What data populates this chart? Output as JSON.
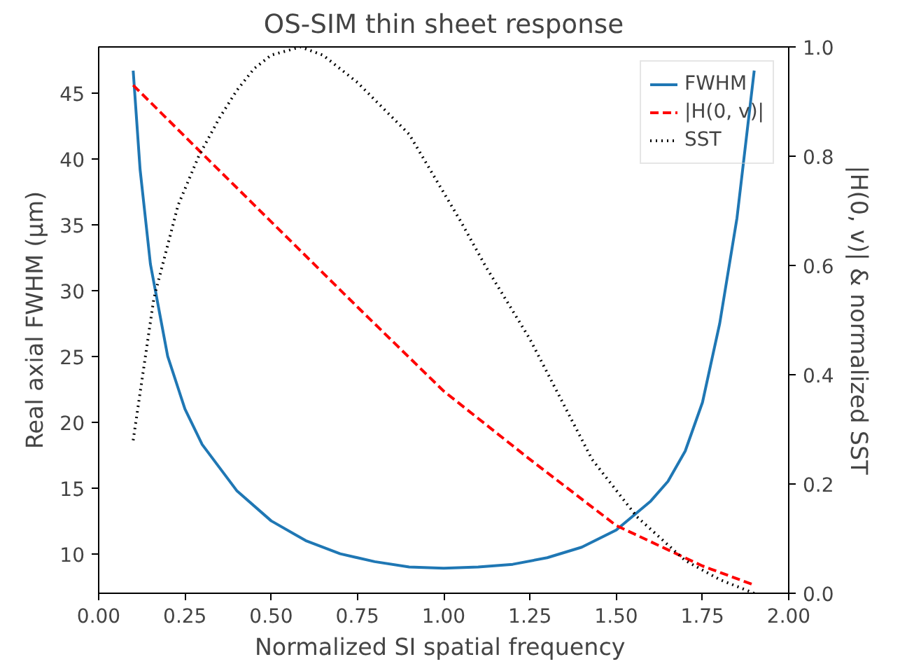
{
  "chart_data": {
    "type": "line",
    "title": "OS-SIM thin sheet response",
    "xlabel": "Normalized SI spatial  frequency",
    "ylabel": "Real axial FWHM (μm)",
    "y2label": "|H(0, v)| & normalized SST",
    "xlim": [
      0.0,
      2.0
    ],
    "ylim": [
      7.0,
      48.5
    ],
    "y2lim": [
      0.0,
      1.0
    ],
    "xticks": [
      {
        "value": 0,
        "label": "0.00"
      },
      {
        "value": 0.25,
        "label": "0.25"
      },
      {
        "value": 0.5,
        "label": "0.50"
      },
      {
        "value": 0.75,
        "label": "0.75"
      },
      {
        "value": 1,
        "label": "1.00"
      },
      {
        "value": 1.25,
        "label": "1.25"
      },
      {
        "value": 1.5,
        "label": "1.50"
      },
      {
        "value": 1.75,
        "label": "1.75"
      },
      {
        "value": 2,
        "label": "2.00"
      }
    ],
    "yticks": [
      10,
      15,
      20,
      25,
      30,
      35,
      40,
      45
    ],
    "y2ticks": [
      {
        "value": 0,
        "label": "0.0"
      },
      {
        "value": 0.2,
        "label": "0.2"
      },
      {
        "value": 0.4,
        "label": "0.4"
      },
      {
        "value": 0.6,
        "label": "0.6"
      },
      {
        "value": 0.8,
        "label": "0.8"
      },
      {
        "value": 1,
        "label": "1.0"
      }
    ],
    "legend": "top right",
    "grid": false,
    "series": [
      {
        "name": "FWHM",
        "color": "#1f77b4",
        "line_style": "solid",
        "x": [
          0.1,
          0.12,
          0.15,
          0.2,
          0.25,
          0.3,
          0.4,
          0.5,
          0.6,
          0.7,
          0.8,
          0.9,
          1.0,
          1.1,
          1.2,
          1.3,
          1.4,
          1.5,
          1.6,
          1.65,
          1.7,
          1.75,
          1.8,
          1.85,
          1.9
        ],
        "values": [
          46.7,
          39.2,
          32,
          25,
          21,
          18.3,
          14.8,
          12.5,
          11,
          10,
          9.4,
          9.0,
          8.9,
          9.0,
          9.2,
          9.7,
          10.5,
          11.8,
          14,
          15.5,
          17.8,
          21.5,
          27.5,
          35.5,
          46.7
        ]
      },
      {
        "name": "|H(0, v)|",
        "color": "#ff0000",
        "line_style": "dashed",
        "axis": "y2",
        "x": [
          0.1,
          0.25,
          0.5,
          0.75,
          1.0,
          1.12,
          1.25,
          1.5,
          1.75,
          1.9
        ],
        "values": [
          0.93,
          0.836,
          0.68,
          0.524,
          0.37,
          0.31,
          0.245,
          0.124,
          0.05,
          0.015
        ]
      },
      {
        "name": "SST",
        "color": "#000000",
        "line_style": "dotted",
        "axis": "y2",
        "x": [
          0.1,
          0.16,
          0.23,
          0.29,
          0.35,
          0.4,
          0.45,
          0.5,
          0.585,
          0.65,
          0.75,
          0.9,
          1.05,
          1.12,
          1.25,
          1.43,
          1.56,
          1.7,
          1.8,
          1.9
        ],
        "values": [
          0.28,
          0.54,
          0.71,
          0.8,
          0.87,
          0.92,
          0.96,
          0.985,
          1.0,
          0.985,
          0.935,
          0.84,
          0.68,
          0.6,
          0.465,
          0.245,
          0.14,
          0.06,
          0.025,
          0.0
        ]
      }
    ]
  }
}
